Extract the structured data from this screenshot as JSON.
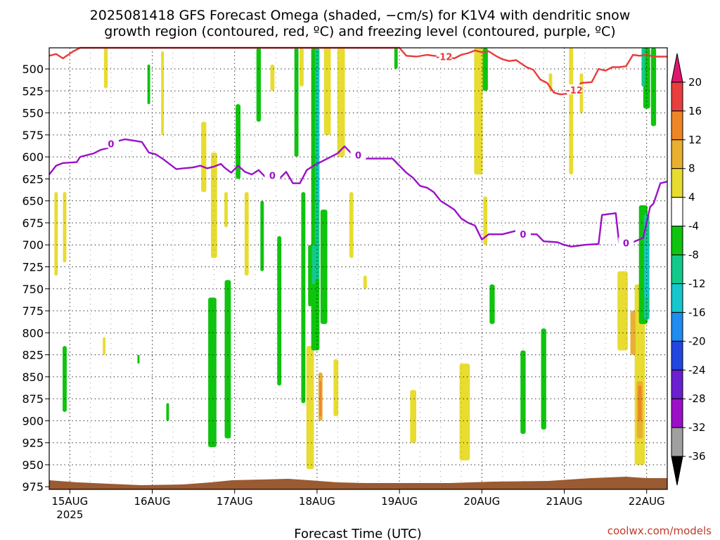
{
  "chart_data": {
    "type": "heatmap",
    "title_line1": "2025081418 GFS Forecast Omega (shaded, −cm/s) for K1V4 with dendritic snow",
    "title_line2": "growth region (contoured, red, ºC) and freezing level (contoured, purple, ºC)",
    "xlabel": "Forecast Time (UTC)",
    "credit": "coolwx.com/models",
    "y_axis": {
      "label": "",
      "unit": "hPa",
      "ticks": [
        500,
        525,
        550,
        575,
        600,
        625,
        650,
        675,
        700,
        725,
        750,
        775,
        800,
        825,
        850,
        875,
        900,
        925,
        950,
        975
      ],
      "range": [
        476,
        978
      ],
      "grid": true
    },
    "x_axis": {
      "unit": "hours from 2025-08-15 00Z",
      "ticks": [
        {
          "label": "15AUG",
          "sub": "2025",
          "hour": 0
        },
        {
          "label": "16AUG",
          "sub": "",
          "hour": 24
        },
        {
          "label": "17AUG",
          "sub": "",
          "hour": 48
        },
        {
          "label": "18AUG",
          "sub": "",
          "hour": 72
        },
        {
          "label": "19AUG",
          "sub": "",
          "hour": 96
        },
        {
          "label": "20AUG",
          "sub": "",
          "hour": 120
        },
        {
          "label": "21AUG",
          "sub": "",
          "hour": 144
        },
        {
          "label": "22AUG",
          "sub": "",
          "hour": 168
        }
      ],
      "range": [
        -6,
        174
      ],
      "grid": true
    },
    "colorbar": {
      "levels": [
        -36,
        -32,
        -28,
        -24,
        -20,
        -16,
        -12,
        -8,
        -4,
        4,
        8,
        12,
        16,
        20
      ],
      "colors": [
        "#000000",
        "#a0a0a0",
        "#9c0fc7",
        "#6a1fd0",
        "#2246e0",
        "#1f8cf0",
        "#15c7cc",
        "#12c98c",
        "#0ec40e",
        "#ffffff",
        "#e8dc30",
        "#e8b030",
        "#ee8526",
        "#e83e3e",
        "#e0166e"
      ]
    },
    "freezing_level": {
      "label": "0",
      "color": "#9b11c7",
      "points": [
        [
          -6,
          620
        ],
        [
          -4,
          610
        ],
        [
          -2,
          607
        ],
        [
          2,
          606
        ],
        [
          3,
          600
        ],
        [
          7,
          596
        ],
        [
          9,
          592
        ],
        [
          11,
          590
        ],
        [
          12,
          585
        ],
        [
          14,
          582
        ],
        [
          16,
          580
        ],
        [
          18,
          581
        ],
        [
          21,
          583
        ],
        [
          23,
          595
        ],
        [
          25,
          597
        ],
        [
          27,
          602
        ],
        [
          29,
          608
        ],
        [
          31,
          614
        ],
        [
          33,
          613
        ],
        [
          36,
          612
        ],
        [
          38,
          610
        ],
        [
          40,
          613
        ],
        [
          42,
          611
        ],
        [
          44,
          608
        ],
        [
          45,
          612
        ],
        [
          47,
          618
        ],
        [
          49,
          610
        ],
        [
          51,
          617
        ],
        [
          53,
          620
        ],
        [
          55,
          615
        ],
        [
          57,
          623
        ],
        [
          59,
          621
        ],
        [
          61,
          625
        ],
        [
          63,
          617
        ],
        [
          65,
          630
        ],
        [
          67,
          630
        ],
        [
          69,
          615
        ],
        [
          71,
          610
        ],
        [
          73,
          606
        ],
        [
          75,
          602
        ],
        [
          78,
          596
        ],
        [
          80,
          588
        ],
        [
          82,
          596
        ],
        [
          84,
          598
        ],
        [
          86,
          602
        ],
        [
          90,
          602
        ],
        [
          94,
          602
        ],
        [
          96,
          610
        ],
        [
          98,
          618
        ],
        [
          100,
          624
        ],
        [
          102,
          633
        ],
        [
          104,
          635
        ],
        [
          106,
          640
        ],
        [
          108,
          650
        ],
        [
          110,
          655
        ],
        [
          112,
          660
        ],
        [
          114,
          670
        ],
        [
          116,
          675
        ],
        [
          118,
          678
        ],
        [
          120,
          694
        ],
        [
          122,
          688
        ],
        [
          126,
          688
        ],
        [
          128,
          686
        ],
        [
          130,
          684
        ],
        [
          132,
          688
        ],
        [
          136,
          688
        ],
        [
          138,
          696
        ],
        [
          142,
          697
        ],
        [
          144,
          700
        ],
        [
          146,
          702
        ],
        [
          148,
          701
        ],
        [
          150,
          700
        ],
        [
          154,
          699
        ],
        [
          155,
          666
        ],
        [
          159,
          664
        ],
        [
          160,
          699
        ],
        [
          162,
          698
        ],
        [
          164,
          697
        ],
        [
          167,
          692
        ],
        [
          169,
          657
        ],
        [
          170,
          653
        ],
        [
          172,
          630
        ],
        [
          174,
          628
        ]
      ]
    },
    "dgz_contour": {
      "label": "-12",
      "color": "#e83c3c",
      "points": [
        [
          -6,
          485
        ],
        [
          -4,
          483
        ],
        [
          -2,
          488
        ],
        [
          1,
          480
        ],
        [
          3,
          476
        ],
        [
          96,
          476
        ],
        [
          98,
          485
        ],
        [
          101,
          486
        ],
        [
          104,
          484
        ],
        [
          106,
          485
        ],
        [
          109,
          486
        ],
        [
          112,
          488
        ],
        [
          114,
          484
        ],
        [
          116,
          482
        ],
        [
          118,
          479
        ],
        [
          120,
          481
        ],
        [
          122,
          480
        ],
        [
          124,
          485
        ],
        [
          126,
          489
        ],
        [
          128,
          491
        ],
        [
          130,
          490
        ],
        [
          133,
          498
        ],
        [
          135,
          501
        ],
        [
          137,
          512
        ],
        [
          139,
          516
        ],
        [
          141,
          527
        ],
        [
          143,
          529
        ],
        [
          145,
          528
        ],
        [
          147,
          524
        ],
        [
          149,
          516
        ],
        [
          152,
          515
        ],
        [
          154,
          500
        ],
        [
          156,
          502
        ],
        [
          158,
          498
        ],
        [
          160,
          498
        ],
        [
          162,
          497
        ],
        [
          164,
          484
        ],
        [
          166,
          485
        ],
        [
          168,
          484
        ],
        [
          170,
          486
        ],
        [
          174,
          486
        ]
      ]
    },
    "shaded_regions": [
      {
        "level": "4",
        "cells": [
          [
            10.5,
            476,
            522,
            1.1
          ],
          [
            -4,
            640,
            735,
            1
          ],
          [
            -1.5,
            640,
            720,
            1
          ],
          [
            10,
            805,
            825,
            0.8
          ],
          [
            27,
            480,
            575,
            0.8
          ],
          [
            39,
            560,
            640,
            1.5
          ],
          [
            42,
            595,
            715,
            1.8
          ],
          [
            45.5,
            640,
            680,
            1.0
          ],
          [
            51.5,
            640,
            735,
            1.2
          ],
          [
            59,
            495,
            525,
            1.2
          ],
          [
            61,
            740,
            760,
            1.0
          ],
          [
            67.5,
            476,
            520,
            1.2
          ],
          [
            70,
            815,
            955,
            2.2
          ],
          [
            75,
            476,
            575,
            2.0
          ],
          [
            77.5,
            830,
            895,
            1.4
          ],
          [
            79,
            476,
            600,
            2.2
          ],
          [
            82,
            640,
            715,
            1.2
          ],
          [
            86,
            735,
            750,
            1.0
          ],
          [
            100,
            865,
            925,
            1.8
          ],
          [
            115,
            835,
            945,
            3.0
          ],
          [
            119,
            476,
            620,
            2.5
          ],
          [
            121,
            645,
            700,
            1.2
          ],
          [
            140,
            505,
            525,
            1.0
          ],
          [
            146,
            476,
            620,
            1.2
          ],
          [
            149,
            505,
            550,
            1.0
          ],
          [
            161,
            730,
            820,
            3.0
          ],
          [
            166,
            745,
            950,
            3.0
          ]
        ]
      },
      {
        "level": "8",
        "cells": [
          [
            73,
            845,
            900,
            1.2
          ],
          [
            164,
            775,
            825,
            1.5
          ],
          [
            166,
            855,
            920,
            1.8
          ]
        ]
      },
      {
        "level": "12",
        "cells": [
          [
            73,
            855,
            895,
            0.6
          ],
          [
            166,
            860,
            900,
            1.0
          ]
        ]
      },
      {
        "level": "-4",
        "cells": [
          [
            -1.5,
            815,
            890,
            1.2
          ],
          [
            23,
            495,
            540,
            0.8
          ],
          [
            41.5,
            760,
            930,
            2.4
          ],
          [
            46,
            740,
            920,
            1.8
          ],
          [
            49,
            540,
            625,
            1.4
          ],
          [
            55,
            476,
            560,
            1.3
          ],
          [
            56,
            650,
            730,
            1.0
          ],
          [
            61,
            690,
            860,
            1.2
          ],
          [
            66,
            476,
            600,
            1.2
          ],
          [
            68,
            640,
            880,
            1.2
          ],
          [
            70,
            700,
            770,
            1.2
          ],
          [
            71.5,
            476,
            820,
            2.4
          ],
          [
            74,
            660,
            790,
            2.0
          ],
          [
            95,
            476,
            500,
            1.0
          ],
          [
            121,
            476,
            525,
            1.5
          ],
          [
            123,
            745,
            790,
            1.5
          ],
          [
            132,
            820,
            915,
            1.5
          ],
          [
            138,
            795,
            910,
            1.5
          ],
          [
            168,
            476,
            545,
            2.0
          ],
          [
            170,
            476,
            565,
            1.5
          ],
          [
            167,
            655,
            790,
            2.5
          ],
          [
            20,
            825,
            835,
            0.6
          ],
          [
            28.5,
            880,
            900,
            0.8
          ]
        ]
      },
      {
        "level": "-8",
        "cells": [
          [
            72,
            476,
            740,
            1.2
          ],
          [
            71,
            700,
            745,
            1.0
          ],
          [
            167,
            476,
            520,
            1.0
          ],
          [
            168,
            665,
            785,
            1.6
          ]
        ]
      },
      {
        "level": "-12",
        "cells": [
          [
            72.3,
            500,
            650,
            0.6
          ],
          [
            168,
            700,
            760,
            1.2
          ]
        ]
      }
    ]
  }
}
